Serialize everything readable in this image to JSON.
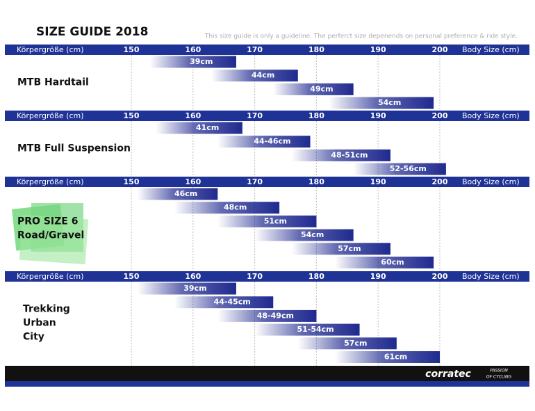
{
  "header": {
    "title": "SIZE GUIDE 2018",
    "note": "This size guide is only a guideline. The perferct size depenends on personal preference & ride style."
  },
  "footer": {
    "brand": "corratec",
    "tagline": [
      "PASSION",
      "OF CYCLING"
    ]
  },
  "chart_data": [
    {
      "type": "range_bar",
      "title": [
        "MTB Hardtail"
      ],
      "xlabel": "Körpergröße (cm)",
      "xlabel_right": "Body Size (cm)",
      "categories": [
        "39cm",
        "44cm",
        "49cm",
        "54cm"
      ],
      "low": [
        153,
        163,
        173,
        182
      ],
      "high": [
        167,
        177,
        186,
        199
      ],
      "xlim": [
        150,
        200
      ],
      "xticks": [
        150,
        160,
        170,
        180,
        190,
        200
      ],
      "color": "#1f2a8f",
      "grid": true
    },
    {
      "type": "range_bar",
      "title": [
        "MTB Full Suspension"
      ],
      "xlabel": "Körpergröße (cm)",
      "xlabel_right": "Body Size (cm)",
      "categories": [
        "41cm",
        "44-46cm",
        "48-51cm",
        "52-56cm"
      ],
      "low": [
        154,
        164,
        176,
        186
      ],
      "high": [
        168,
        179,
        192,
        201
      ],
      "xlim": [
        150,
        200
      ],
      "xticks": [
        150,
        160,
        170,
        180,
        190,
        200
      ],
      "color": "#1f2a8f",
      "grid": true
    },
    {
      "type": "range_bar",
      "title": [
        "PRO SIZE 6",
        "Road/Gravel"
      ],
      "xlabel": "Körpergröße (cm)",
      "xlabel_right": "Body Size (cm)",
      "categories": [
        "46cm",
        "48cm",
        "51cm",
        "54cm",
        "57cm",
        "60cm"
      ],
      "low": [
        151,
        157,
        164,
        170,
        176,
        183
      ],
      "high": [
        164,
        174,
        180,
        186,
        192,
        199
      ],
      "xlim": [
        150,
        200
      ],
      "xticks": [
        150,
        160,
        170,
        180,
        190,
        200
      ],
      "color": "#1f2a8f",
      "grid": true
    },
    {
      "type": "range_bar",
      "title": [
        "Trekking",
        "Urban",
        "City"
      ],
      "xlabel": "Körpergröße (cm)",
      "xlabel_right": "Body Size (cm)",
      "categories": [
        "39cm",
        "44-45cm",
        "48-49cm",
        "51-54cm",
        "57cm",
        "61cm"
      ],
      "low": [
        151,
        157,
        164,
        170,
        177,
        183
      ],
      "high": [
        167,
        173,
        180,
        187,
        193,
        200
      ],
      "xlim": [
        150,
        200
      ],
      "xticks": [
        150,
        160,
        170,
        180,
        190,
        200
      ],
      "color": "#1f2a8f",
      "grid": true
    }
  ]
}
